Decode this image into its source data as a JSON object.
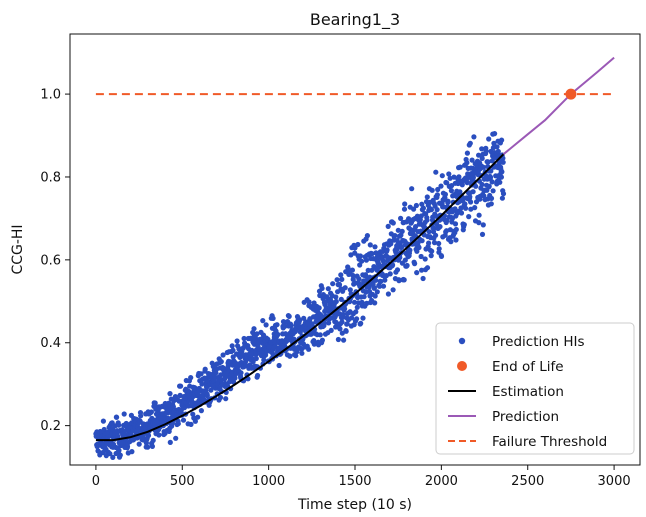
{
  "chart_data": {
    "type": "scatter",
    "title": "Bearing1_3",
    "xlabel": "Time step (10 s)",
    "ylabel": "CCG-HI",
    "xlim": [
      -150,
      3150
    ],
    "ylim": [
      0.105,
      1.145
    ],
    "xticks": [
      0,
      500,
      1000,
      1500,
      2000,
      2500,
      3000
    ],
    "yticks": [
      0.2,
      0.4,
      0.6,
      0.8,
      1.0
    ],
    "xtick_labels": [
      "0",
      "500",
      "1000",
      "1500",
      "2000",
      "2500",
      "3000"
    ],
    "ytick_labels": [
      "0.2",
      "0.4",
      "0.6",
      "0.8",
      "1.0"
    ],
    "grid": false,
    "legend_position": "lower-right",
    "series": [
      {
        "name": "Prediction HIs",
        "kind": "scatter",
        "color": "#2a4ebf",
        "x_range": [
          0,
          2360
        ],
        "trend_x": [
          0,
          200,
          400,
          600,
          800,
          1000,
          1200,
          1400,
          1600,
          1800,
          2000,
          2200,
          2360
        ],
        "trend_y": [
          0.16,
          0.18,
          0.22,
          0.28,
          0.34,
          0.39,
          0.43,
          0.49,
          0.57,
          0.64,
          0.71,
          0.79,
          0.84
        ]
      },
      {
        "name": "End of Life",
        "kind": "point",
        "color": "#f05a28",
        "x": [
          2750
        ],
        "y": [
          1.0
        ]
      },
      {
        "name": "Estimation",
        "kind": "line",
        "color": "#000000",
        "x": [
          0,
          100,
          200,
          300,
          400,
          500,
          600,
          700,
          800,
          900,
          1000,
          1100,
          1200,
          1300,
          1400,
          1500,
          1600,
          1700,
          1800,
          1900,
          2000,
          2100,
          2200,
          2300,
          2360
        ],
        "y": [
          0.165,
          0.165,
          0.172,
          0.185,
          0.203,
          0.224,
          0.247,
          0.272,
          0.298,
          0.326,
          0.355,
          0.385,
          0.416,
          0.449,
          0.483,
          0.518,
          0.554,
          0.591,
          0.629,
          0.668,
          0.707,
          0.748,
          0.789,
          0.83,
          0.855
        ]
      },
      {
        "name": "Prediction",
        "kind": "line",
        "color": "#9b59b6",
        "x": [
          2360,
          2500,
          2600,
          2750,
          2900,
          3000
        ],
        "y": [
          0.855,
          0.903,
          0.937,
          1.0,
          1.052,
          1.088
        ]
      },
      {
        "name": "Failure Threshold",
        "kind": "dashed",
        "color": "#f05a28",
        "x": [
          0,
          3000
        ],
        "y": [
          1.0,
          1.0
        ]
      }
    ]
  }
}
